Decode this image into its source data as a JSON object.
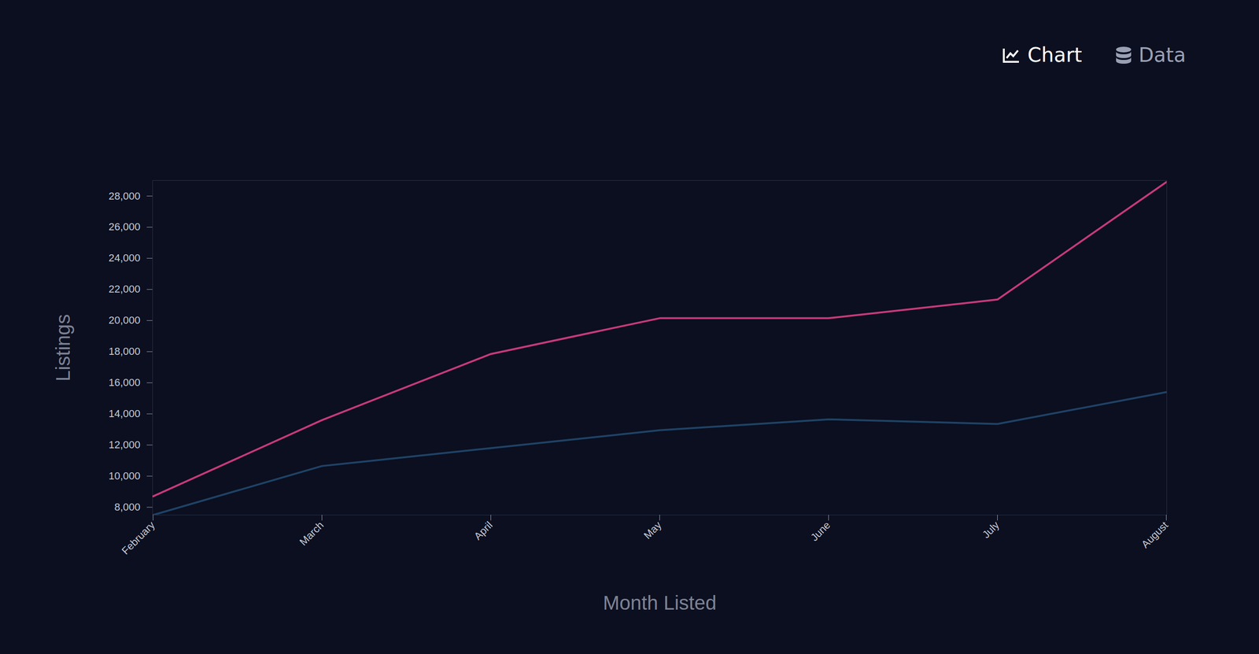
{
  "chart_data": {
    "type": "line",
    "x_label": "Month Listed",
    "y_label": "Listings",
    "categories": [
      "February",
      "March",
      "April",
      "May",
      "June",
      "July",
      "August"
    ],
    "series": [
      {
        "color": "#c8397a",
        "values": [
          8700,
          13600,
          17850,
          20150,
          20150,
          21350,
          28900
        ]
      },
      {
        "color": "#1f4266",
        "values": [
          7500,
          10650,
          11800,
          12950,
          13650,
          13350,
          15400
        ]
      }
    ],
    "ylim": [
      7500,
      29000
    ],
    "yticks": [
      {
        "value": 8000,
        "label": "8,000"
      },
      {
        "value": 10000,
        "label": "10,000"
      },
      {
        "value": 12000,
        "label": "12,000"
      },
      {
        "value": 14000,
        "label": "14,000"
      },
      {
        "value": 16000,
        "label": "16,000"
      },
      {
        "value": 18000,
        "label": "18,000"
      },
      {
        "value": 20000,
        "label": "20,000"
      },
      {
        "value": 22000,
        "label": "22,000"
      },
      {
        "value": 24000,
        "label": "24,000"
      },
      {
        "value": 26000,
        "label": "26,000"
      },
      {
        "value": 28000,
        "label": "28,000"
      }
    ],
    "grid": false
  },
  "toolbar": {
    "tabs": [
      "Chart",
      "Data"
    ],
    "active": "Chart"
  }
}
